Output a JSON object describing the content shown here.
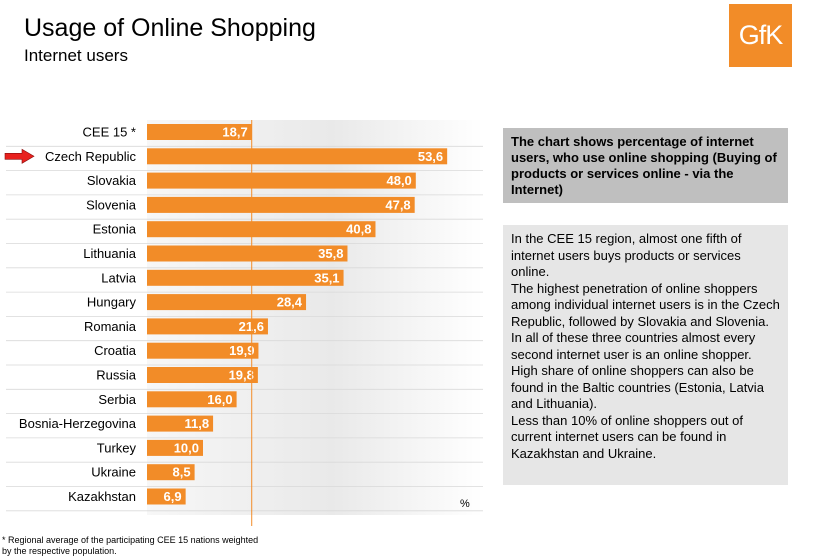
{
  "header": {
    "title": "Usage of Online Shopping",
    "subtitle": "Internet users",
    "logo_text": "GfK"
  },
  "chart_data": {
    "type": "bar",
    "orientation": "horizontal",
    "title": "Usage of Online Shopping",
    "categories": [
      "CEE 15 *",
      "Czech Republic",
      "Slovakia",
      "Slovenia",
      "Estonia",
      "Lithuania",
      "Latvia",
      "Hungary",
      "Romania",
      "Croatia",
      "Russia",
      "Serbia",
      "Bosnia-Herzegovina",
      "Turkey",
      "Ukraine",
      "Kazakhstan"
    ],
    "values": [
      18.7,
      53.6,
      48.0,
      47.8,
      40.8,
      35.8,
      35.1,
      28.4,
      21.6,
      19.9,
      19.8,
      16.0,
      11.8,
      10.0,
      8.5,
      6.9
    ],
    "labels": [
      "18,7",
      "53,6",
      "48,0",
      "47,8",
      "40,8",
      "35,8",
      "35,1",
      "28,4",
      "21,6",
      "19,9",
      "19,8",
      "16,0",
      "11,8",
      "10,0",
      "8,5",
      "6,9"
    ],
    "unit": "%",
    "xlim": [
      0,
      60
    ],
    "reference_value": 18.7,
    "highlighted_category": "Czech Republic",
    "bar_color": "#f28c28",
    "highlight_arrow_color": "#e8211e",
    "grid": false
  },
  "info": {
    "heading": "The chart shows percentage of internet users, who use online shopping (Buying of products or services online - via the Internet)",
    "paragraphs": [
      "In the CEE 15 region, almost one fifth of internet users buys products or services online.",
      "The highest penetration of online shoppers among individual internet users is in the Czech Republic, followed by Slovakia and Slovenia. In all of these three countries almost every second internet user is an online shopper.",
      "High share of online shoppers can also be found in the Baltic countries (Estonia, Latvia and Lithuania).",
      "Less than 10% of online shoppers out of current internet users can be found in Kazakhstan and Ukraine."
    ]
  },
  "footnote": "* Regional average of the participating CEE 15 nations weighted by the respective population."
}
